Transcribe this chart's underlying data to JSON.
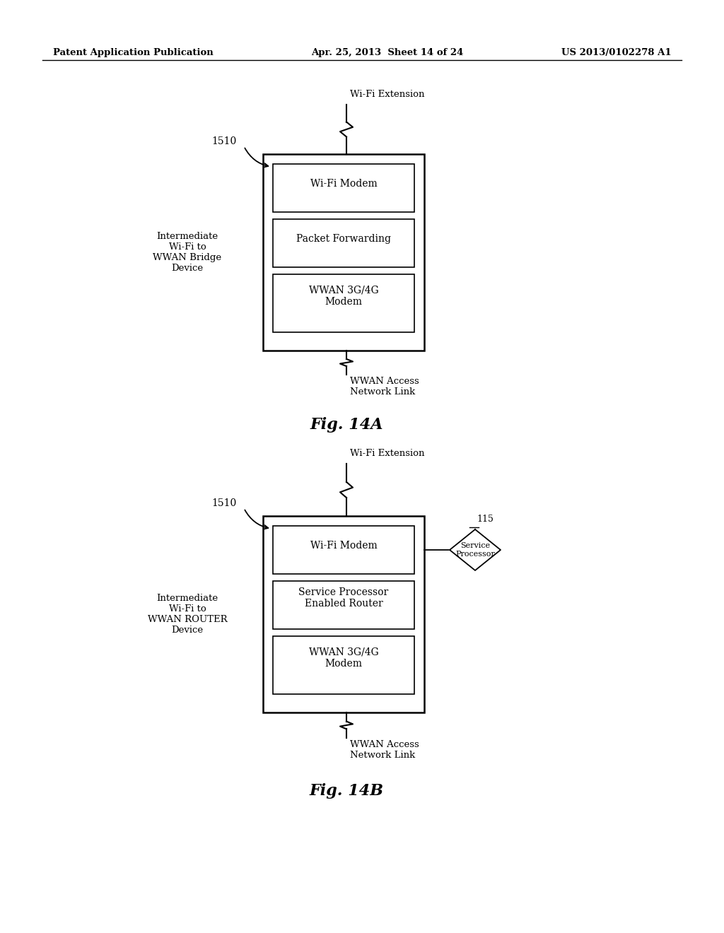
{
  "bg_color": "#ffffff",
  "header_left": "Patent Application Publication",
  "header_center": "Apr. 25, 2013  Sheet 14 of 24",
  "header_right": "US 2013/0102278 A1",
  "fig_a_label": "Fig. 14A",
  "fig_b_label": "Fig. 14B",
  "diagram_a": {
    "label_1510": "1510",
    "label_left": "Intermediate\nWi-Fi to\nWWAN Bridge\nDevice",
    "label_wifi_ext": "Wi-Fi Extension",
    "label_wwan_link": "WWAN Access\nNetwork Link",
    "boxes_inner": [
      {
        "label": "Wi-Fi Modem"
      },
      {
        "label": "Packet Forwarding"
      },
      {
        "label": "WWAN 3G/4G\nModem"
      }
    ]
  },
  "diagram_b": {
    "label_1510": "1510",
    "label_left": "Intermediate\nWi-Fi to\nWWAN ROUTER\nDevice",
    "label_wifi_ext": "Wi-Fi Extension",
    "label_wwan_link": "WWAN Access\nNetwork Link",
    "label_115": "115",
    "label_sp": "Service\nProcessor",
    "boxes_inner": [
      {
        "label": "Wi-Fi Modem"
      },
      {
        "label": "Service Processor\nEnabled Router"
      },
      {
        "label": "WWAN 3G/4G\nModem"
      }
    ]
  },
  "text_color": "#000000",
  "box_edge_color": "#000000",
  "line_color": "#000000"
}
